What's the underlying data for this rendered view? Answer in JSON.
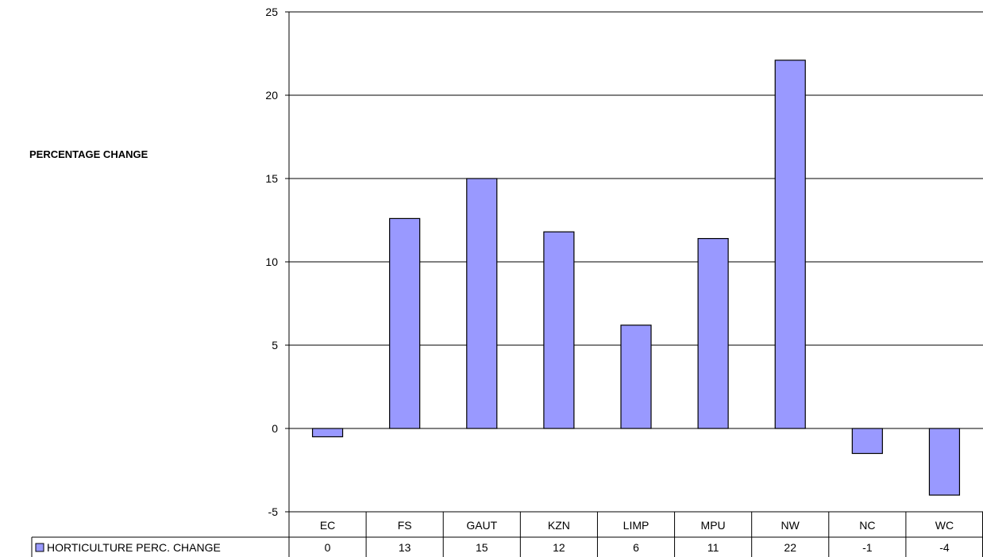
{
  "chart_data": {
    "type": "bar",
    "title": "",
    "xlabel": "",
    "ylabel": "PERCENTAGE CHANGE",
    "categories": [
      "EC",
      "FS",
      "GAUT",
      "KZN",
      "LIMP",
      "MPU",
      "NW",
      "NC",
      "WC"
    ],
    "series": [
      {
        "name": "HORTICULTURE PERC. CHANGE",
        "values": [
          -0.5,
          12.6,
          15.0,
          11.8,
          6.2,
          11.4,
          22.1,
          -1.5,
          -4.0
        ],
        "table_labels": [
          "0",
          "13",
          "15",
          "12",
          "6",
          "11",
          "22",
          "-1",
          "-4"
        ],
        "color": "#9999ff"
      }
    ],
    "ylim": [
      -5,
      25
    ],
    "yticks": [
      "-5",
      "0",
      "5",
      "10",
      "15",
      "20",
      "25"
    ],
    "grid": true,
    "legend": "data-table-left",
    "data_table": true
  }
}
